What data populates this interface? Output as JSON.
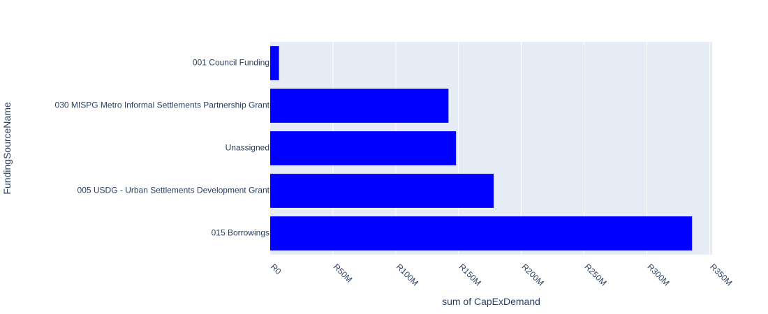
{
  "chart_data": {
    "type": "bar",
    "orientation": "horizontal",
    "categories": [
      "001 Council Funding",
      "030 MISPG Metro Informal Settlements Partnership Grant",
      "Unassigned",
      "005 USDG - Urban Settlements Development Grant",
      "015 Borrowings"
    ],
    "values": [
      7000000,
      142000000,
      148000000,
      178000000,
      336000000
    ],
    "xlabel": "sum of CapExDemand",
    "ylabel": "FundingSourceName",
    "xlim": [
      0,
      352000000
    ],
    "xticks": [
      0,
      50000000,
      100000000,
      150000000,
      200000000,
      250000000,
      300000000,
      350000000
    ],
    "xtick_labels": [
      "R0",
      "R50M",
      "R100M",
      "R150M",
      "R200M",
      "R250M",
      "R300M",
      "R350M"
    ],
    "grid": true,
    "bar_color": "#0000ff",
    "plot_background": "#e5ecf6",
    "grid_color": "#ffffff",
    "text_color": "#2a3f5f"
  }
}
